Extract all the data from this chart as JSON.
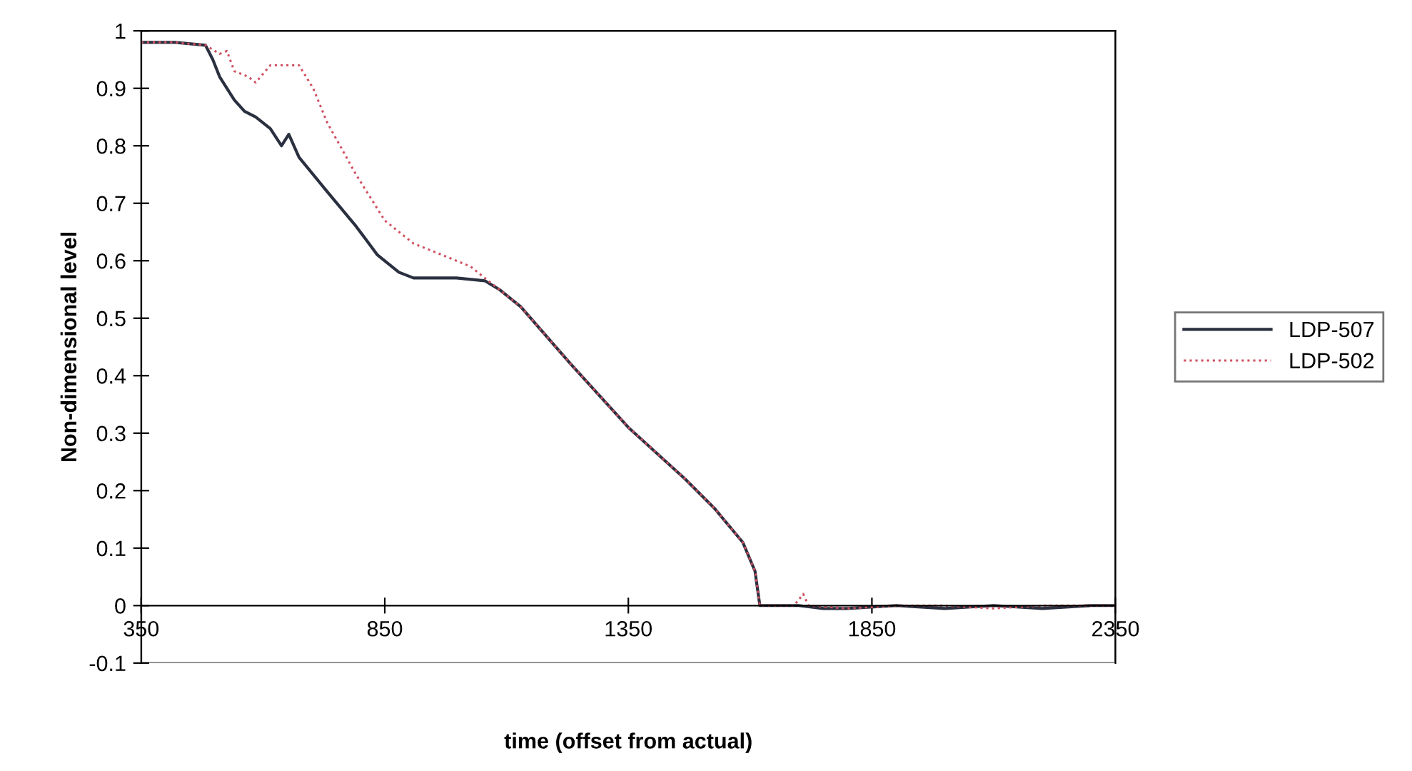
{
  "chart_data": {
    "type": "line",
    "xlabel": "time (offset from actual)",
    "ylabel": "Non-dimensional level",
    "xlim": [
      350,
      2350
    ],
    "xticks": [
      350,
      850,
      1350,
      1850,
      2350
    ],
    "ylim": [
      -0.1,
      1
    ],
    "yticks": [
      -0.1,
      0,
      0.1,
      0.2,
      0.3,
      0.4,
      0.5,
      0.6,
      0.7,
      0.8,
      0.9,
      1
    ],
    "grid": false,
    "legend": "right",
    "marker": "none",
    "series": [
      {
        "name": "LDP-507",
        "color": "#2b3040",
        "line_style": "solid",
        "x": [
          350,
          420,
          482,
          497,
          511,
          541,
          562,
          585,
          615,
          638,
          653,
          674,
          732,
          791,
          835,
          879,
          909,
          997,
          1056,
          1085,
          1129,
          1232,
          1350,
          1467,
          1526,
          1585,
          1610,
          1620,
          1700,
          1750,
          1800,
          1900,
          2000,
          2100,
          2200,
          2300,
          2350
        ],
        "values": [
          0.98,
          0.98,
          0.975,
          0.95,
          0.92,
          0.88,
          0.86,
          0.85,
          0.83,
          0.8,
          0.82,
          0.78,
          0.72,
          0.66,
          0.61,
          0.58,
          0.57,
          0.57,
          0.565,
          0.55,
          0.52,
          0.42,
          0.31,
          0.22,
          0.17,
          0.11,
          0.06,
          0.0,
          0.0,
          -0.005,
          -0.005,
          0.0,
          -0.005,
          0.0,
          -0.005,
          0.0,
          0.0
        ]
      },
      {
        "name": "LDP-502",
        "color": "#d05060",
        "line_style": "dotted",
        "x": [
          350,
          420,
          482,
          511,
          526,
          541,
          570,
          585,
          615,
          659,
          674,
          703,
          732,
          791,
          850,
          909,
          968,
          1026,
          1070,
          1085,
          1129,
          1232,
          1350,
          1467,
          1526,
          1585,
          1610,
          1620,
          1690,
          1709,
          1720,
          1800,
          1900,
          2000,
          2100,
          2200,
          2300,
          2350
        ],
        "values": [
          0.98,
          0.98,
          0.975,
          0.96,
          0.965,
          0.93,
          0.92,
          0.91,
          0.94,
          0.94,
          0.94,
          0.9,
          0.84,
          0.75,
          0.67,
          0.63,
          0.61,
          0.59,
          0.56,
          0.55,
          0.52,
          0.42,
          0.31,
          0.22,
          0.17,
          0.11,
          0.06,
          0.0,
          0.0,
          0.02,
          0.0,
          -0.005,
          0.0,
          0.0,
          -0.005,
          0.0,
          0.0,
          0.0
        ]
      }
    ]
  }
}
